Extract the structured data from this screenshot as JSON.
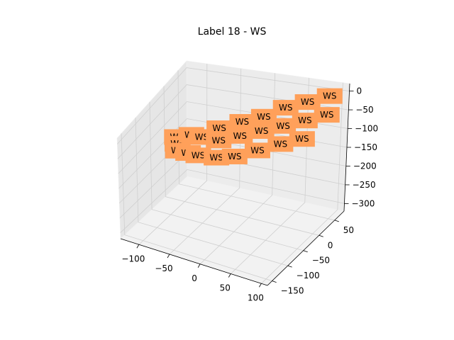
{
  "chart_data": {
    "type": "scatter",
    "title": "Label 18 - WS",
    "xlabel": "",
    "ylabel": "",
    "zlabel": "",
    "xlim": [
      -130,
      110
    ],
    "ylim": [
      -165,
      80
    ],
    "zlim": [
      -320,
      20
    ],
    "x_ticks": [
      "−100",
      "−50",
      "0",
      "50",
      "100"
    ],
    "y_ticks": [
      "−150",
      "−100",
      "−50",
      "0",
      "50"
    ],
    "z_ticks": [
      "−300",
      "−250",
      "−200",
      "−150",
      "−100",
      "−50",
      "0"
    ],
    "x_tick_values": [
      -100,
      -50,
      0,
      50,
      100
    ],
    "y_tick_values": [
      -150,
      -100,
      -50,
      0,
      50
    ],
    "z_tick_values": [
      -300,
      -250,
      -200,
      -150,
      -100,
      -50,
      0
    ],
    "grid": true,
    "marker_color": "#ffa05a",
    "points": [
      {
        "x": -120,
        "y": 20,
        "z": -150,
        "label": "WS"
      },
      {
        "x": -115,
        "y": 10,
        "z": -160,
        "label": "WS"
      },
      {
        "x": -110,
        "y": 0,
        "z": -170,
        "label": "WS"
      },
      {
        "x": -100,
        "y": 25,
        "z": -140,
        "label": "WS"
      },
      {
        "x": -90,
        "y": -10,
        "z": -160,
        "label": "WS"
      },
      {
        "x": -80,
        "y": 15,
        "z": -130,
        "label": "WS"
      },
      {
        "x": -70,
        "y": -20,
        "z": -150,
        "label": "WS"
      },
      {
        "x": -60,
        "y": 30,
        "z": -110,
        "label": "WS"
      },
      {
        "x": -50,
        "y": 5,
        "z": -120,
        "label": "WS"
      },
      {
        "x": -40,
        "y": -25,
        "z": -140,
        "label": "WS"
      },
      {
        "x": -30,
        "y": 40,
        "z": -90,
        "label": "WS"
      },
      {
        "x": -20,
        "y": 10,
        "z": -100,
        "label": "WS"
      },
      {
        "x": -10,
        "y": -30,
        "z": -120,
        "label": "WS"
      },
      {
        "x": 0,
        "y": 45,
        "z": -70,
        "label": "WS"
      },
      {
        "x": 10,
        "y": 15,
        "z": -80,
        "label": "WS"
      },
      {
        "x": 20,
        "y": -20,
        "z": -100,
        "label": "WS"
      },
      {
        "x": 30,
        "y": 50,
        "z": -40,
        "label": "WS"
      },
      {
        "x": 40,
        "y": 20,
        "z": -60,
        "label": "WS"
      },
      {
        "x": 50,
        "y": -10,
        "z": -80,
        "label": "WS"
      },
      {
        "x": 60,
        "y": 55,
        "z": -20,
        "label": "WS"
      },
      {
        "x": 70,
        "y": 25,
        "z": -40,
        "label": "WS"
      },
      {
        "x": 80,
        "y": -5,
        "z": -60,
        "label": "WS"
      },
      {
        "x": 90,
        "y": 60,
        "z": 0,
        "label": "WS"
      },
      {
        "x": 100,
        "y": 30,
        "z": -20,
        "label": "WS"
      }
    ]
  }
}
